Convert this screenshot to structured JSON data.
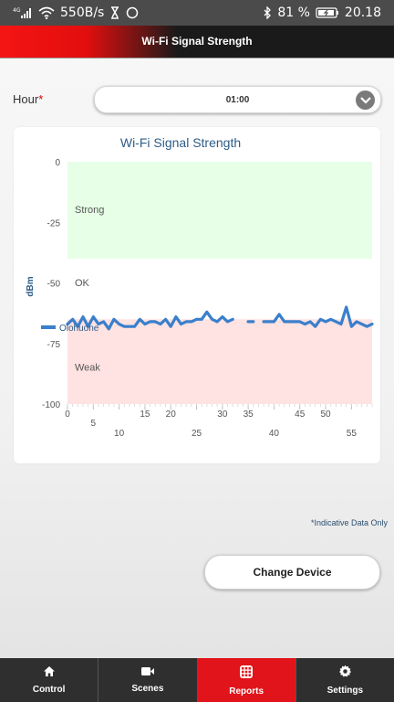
{
  "status_bar": {
    "network_type": "4G",
    "speed": "550B/s",
    "battery": "81 %",
    "time": "20.18"
  },
  "header": {
    "title": "Wi-Fi Signal Strength"
  },
  "hour": {
    "label": "Hour",
    "required_mark": "*",
    "value": "01:00"
  },
  "chart_data": {
    "type": "line",
    "title": "Wi-Fi Signal Strength",
    "ylabel": "dBm",
    "ylim": [
      -100,
      0
    ],
    "yticks": [
      0,
      -25,
      -50,
      -75,
      -100
    ],
    "xlim": [
      0,
      59
    ],
    "xticks_upper": [
      "0",
      "15",
      "20",
      "30",
      "35",
      "45",
      "50"
    ],
    "xticks_lower": [
      "5",
      "10",
      "25",
      "40",
      "55"
    ],
    "bands": [
      {
        "label": "Strong",
        "from": 0,
        "to": -40,
        "color": "#e6ffe6"
      },
      {
        "label": "OK",
        "from": -40,
        "to": -65,
        "color": "#ffffff"
      },
      {
        "label": "Weak",
        "from": -65,
        "to": -100,
        "color": "#ffe2e2"
      }
    ],
    "series": [
      {
        "name": "Olohuone",
        "color": "#3a7fcb",
        "x": [
          0,
          1,
          2,
          3,
          4,
          5,
          6,
          7,
          8,
          9,
          10,
          11,
          12,
          13,
          14,
          15,
          16,
          17,
          18,
          19,
          20,
          21,
          22,
          23,
          24,
          25,
          26,
          27,
          28,
          29,
          30,
          31,
          32,
          33,
          34,
          35,
          36,
          37,
          38,
          39,
          40,
          41,
          42,
          43,
          44,
          45,
          46,
          47,
          48,
          49,
          50,
          51,
          52,
          53,
          54,
          55,
          56,
          57,
          58,
          59
        ],
        "y": [
          -67,
          -65,
          -68,
          -64,
          -68,
          -64,
          -67,
          -66,
          -69,
          -65,
          -67,
          -68,
          -68,
          -68,
          -65,
          -67,
          -66,
          -66,
          -67,
          -65,
          -68,
          -64,
          -67,
          -66,
          -66,
          -65,
          -65,
          -62,
          -65,
          -66,
          -64,
          -66,
          -65,
          null,
          null,
          -66,
          -66,
          null,
          -66,
          -66,
          -66,
          -63,
          -66,
          -66,
          -66,
          -66,
          -67,
          -66,
          -68,
          -65,
          -66,
          -65,
          -66,
          -67,
          -60,
          -68,
          -66,
          -67,
          -68,
          -67
        ]
      }
    ],
    "legend": "bottom-left"
  },
  "indicative_note": "*Indicative Data Only",
  "change_device_label": "Change Device",
  "nav": [
    {
      "label": "Control",
      "icon": "home-icon"
    },
    {
      "label": "Scenes",
      "icon": "video-camera-icon"
    },
    {
      "label": "Reports",
      "icon": "grid-icon"
    },
    {
      "label": "Settings",
      "icon": "gear-icon"
    }
  ]
}
